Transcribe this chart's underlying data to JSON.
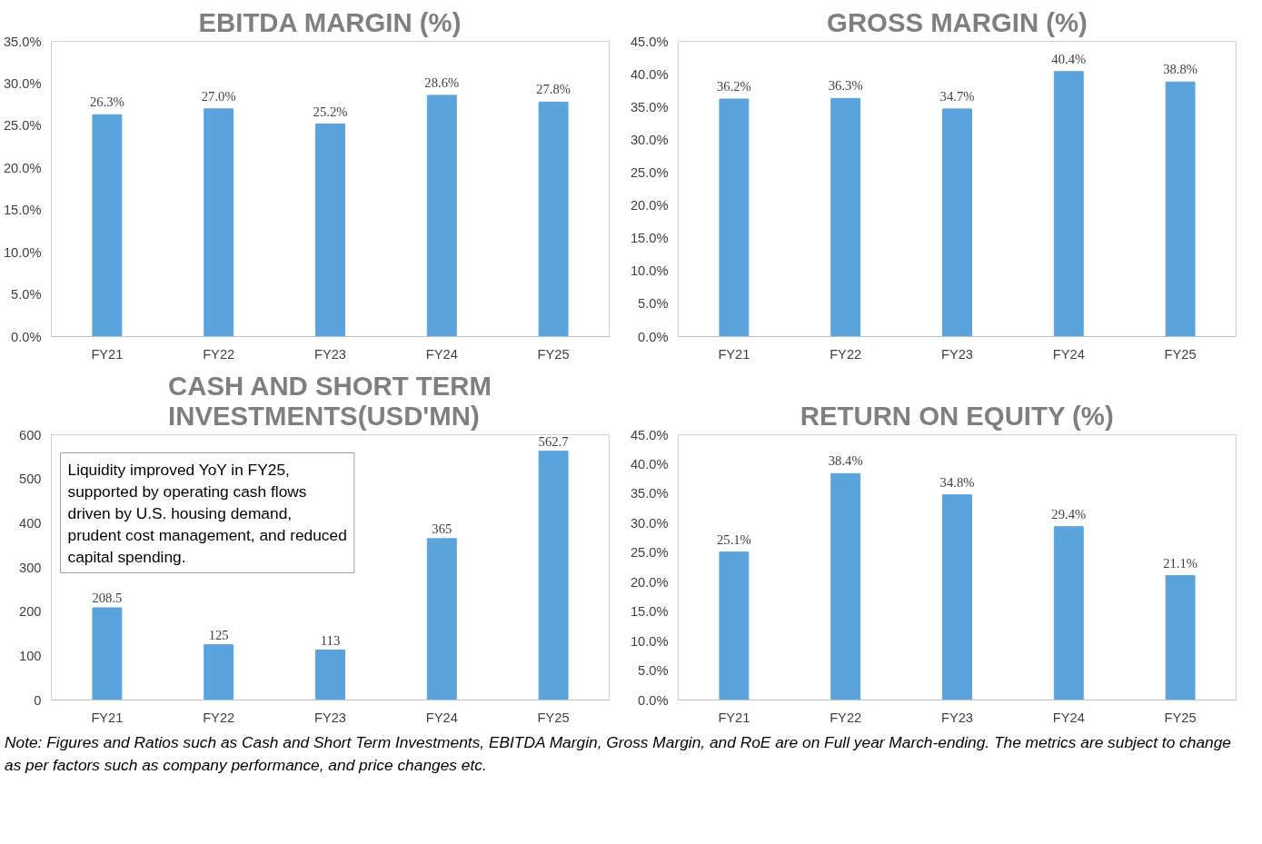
{
  "chart_data": [
    {
      "type": "bar",
      "title": "EBITDA MARGIN (%)",
      "categories": [
        "FY21",
        "FY22",
        "FY23",
        "FY24",
        "FY25"
      ],
      "values": [
        26.3,
        27.0,
        25.2,
        28.6,
        27.8
      ],
      "value_labels": [
        "26.3%",
        "27.0%",
        "25.2%",
        "28.6%",
        "27.8%"
      ],
      "color": "#5ba3dc",
      "ylim": [
        0,
        35
      ],
      "yticks": [
        {
          "value": 0,
          "label": "0.0%"
        },
        {
          "value": 5,
          "label": "5.0%"
        },
        {
          "value": 10,
          "label": "10.0%"
        },
        {
          "value": 15,
          "label": "15.0%"
        },
        {
          "value": 20,
          "label": "20.0%"
        },
        {
          "value": 25,
          "label": "25.0%"
        },
        {
          "value": 30,
          "label": "30.0%"
        },
        {
          "value": 35,
          "label": "35.0%"
        }
      ]
    },
    {
      "type": "bar",
      "title": "GROSS MARGIN (%)",
      "categories": [
        "FY21",
        "FY22",
        "FY23",
        "FY24",
        "FY25"
      ],
      "values": [
        36.2,
        36.3,
        34.7,
        40.4,
        38.8
      ],
      "value_labels": [
        "36.2%",
        "36.3%",
        "34.7%",
        "40.4%",
        "38.8%"
      ],
      "color": "#5ba3dc",
      "ylim": [
        0,
        45
      ],
      "yticks": [
        {
          "value": 0,
          "label": "0.0%"
        },
        {
          "value": 5,
          "label": "5.0%"
        },
        {
          "value": 10,
          "label": "10.0%"
        },
        {
          "value": 15,
          "label": "15.0%"
        },
        {
          "value": 20,
          "label": "20.0%"
        },
        {
          "value": 25,
          "label": "25.0%"
        },
        {
          "value": 30,
          "label": "30.0%"
        },
        {
          "value": 35,
          "label": "35.0%"
        },
        {
          "value": 40,
          "label": "40.0%"
        },
        {
          "value": 45,
          "label": "45.0%"
        }
      ]
    },
    {
      "type": "bar",
      "title": "CASH AND SHORT TERM INVESTMENTS(USD'MN)",
      "categories": [
        "FY21",
        "FY22",
        "FY23",
        "FY24",
        "FY25"
      ],
      "values": [
        208.5,
        125,
        113,
        365,
        562.7
      ],
      "data_labels": true,
      "color": "#5ba3dc",
      "ylim": [
        0,
        600
      ],
      "yticks": [
        0,
        100,
        200,
        300,
        400,
        500,
        600
      ],
      "annotations": [
        "Liquidity improved YoY in FY25, supported by operating cash flows driven by U.S. housing demand, prudent cost management, and reduced capital spending."
      ]
    },
    {
      "type": "bar",
      "title": "RETURN ON EQUITY (%)",
      "categories": [
        "FY21",
        "FY22",
        "FY23",
        "FY24",
        "FY25"
      ],
      "values": [
        25.1,
        38.4,
        34.8,
        29.4,
        21.1
      ],
      "value_labels": [
        "25.1%",
        "38.4%",
        "34.8%",
        "29.4%",
        "21.1%"
      ],
      "color": "#5ba3dc",
      "ylim": [
        0,
        45
      ],
      "yticks": [
        {
          "value": 0,
          "label": "0.0%"
        },
        {
          "value": 5,
          "label": "5.0%"
        },
        {
          "value": 10,
          "label": "10.0%"
        },
        {
          "value": 15,
          "label": "15.0%"
        },
        {
          "value": 20,
          "label": "20.0%"
        },
        {
          "value": 25,
          "label": "25.0%"
        },
        {
          "value": 30,
          "label": "30.0%"
        },
        {
          "value": 35,
          "label": "35.0%"
        },
        {
          "value": 40,
          "label": "40.0%"
        },
        {
          "value": 45,
          "label": "45.0%"
        }
      ],
      "annotations": [
        "Note: Figures and Ratios such as Cash and Short Term Investments, EBITDA Margin, Gross Margin, and RoE are on Full year March-ending. The metrics are subject to change as per factors such as company performance, and price changes etc."
      ]
    }
  ]
}
